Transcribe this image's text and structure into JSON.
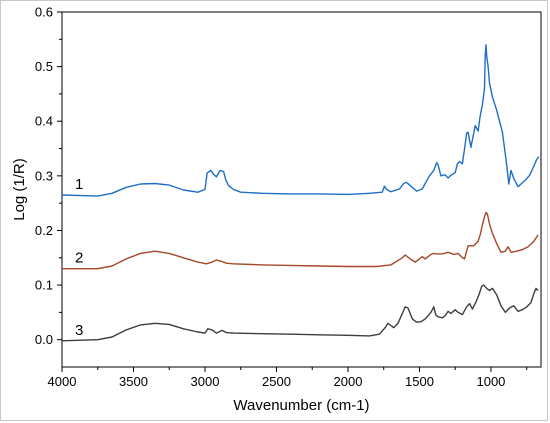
{
  "chart_data": {
    "type": "line",
    "xlabel": "Wavenumber (cm-1)",
    "ylabel": "Log (1/R)",
    "xlim": [
      4000,
      650
    ],
    "ylim": [
      -0.05,
      0.6
    ],
    "x_ticks": [
      "4000",
      "3500",
      "3000",
      "2500",
      "2000",
      "1500",
      "1000"
    ],
    "y_ticks": [
      "0.0",
      "0.1",
      "0.2",
      "0.3",
      "0.4",
      "0.5",
      "0.6"
    ],
    "grid": false,
    "series": [
      {
        "name": "1",
        "color": "#1f6ec4",
        "x": [
          4000,
          3750,
          3650,
          3550,
          3450,
          3350,
          3250,
          3150,
          3050,
          3000,
          2985,
          2960,
          2940,
          2920,
          2895,
          2870,
          2855,
          2835,
          2800,
          2750,
          2600,
          2400,
          2200,
          2000,
          1850,
          1760,
          1745,
          1730,
          1700,
          1640,
          1610,
          1590,
          1560,
          1520,
          1480,
          1460,
          1430,
          1400,
          1380,
          1370,
          1350,
          1320,
          1300,
          1280,
          1250,
          1235,
          1220,
          1200,
          1180,
          1170,
          1160,
          1140,
          1110,
          1090,
          1075,
          1060,
          1045,
          1040,
          1035,
          1030,
          1020,
          1010,
          990,
          960,
          920,
          890,
          875,
          860,
          840,
          810,
          790,
          760,
          730,
          700,
          680,
          665
        ],
        "y": [
          0.265,
          0.263,
          0.268,
          0.279,
          0.285,
          0.286,
          0.283,
          0.274,
          0.27,
          0.275,
          0.305,
          0.31,
          0.303,
          0.298,
          0.31,
          0.308,
          0.293,
          0.282,
          0.275,
          0.27,
          0.268,
          0.267,
          0.267,
          0.266,
          0.268,
          0.27,
          0.281,
          0.275,
          0.271,
          0.276,
          0.286,
          0.288,
          0.281,
          0.272,
          0.276,
          0.286,
          0.3,
          0.31,
          0.324,
          0.32,
          0.3,
          0.302,
          0.296,
          0.301,
          0.306,
          0.322,
          0.326,
          0.322,
          0.358,
          0.378,
          0.38,
          0.352,
          0.392,
          0.382,
          0.41,
          0.43,
          0.46,
          0.52,
          0.54,
          0.52,
          0.5,
          0.47,
          0.445,
          0.42,
          0.38,
          0.32,
          0.285,
          0.31,
          0.295,
          0.28,
          0.285,
          0.292,
          0.301,
          0.318,
          0.33,
          0.335
        ]
      },
      {
        "name": "2",
        "color": "#a5472a",
        "x": [
          4000,
          3750,
          3650,
          3550,
          3450,
          3350,
          3250,
          3150,
          3050,
          2990,
          2950,
          2920,
          2880,
          2850,
          2800,
          2600,
          2400,
          2200,
          2000,
          1800,
          1700,
          1620,
          1600,
          1560,
          1530,
          1500,
          1480,
          1460,
          1440,
          1420,
          1400,
          1380,
          1340,
          1300,
          1260,
          1230,
          1200,
          1185,
          1160,
          1120,
          1090,
          1075,
          1060,
          1045,
          1035,
          1025,
          1010,
          990,
          960,
          930,
          900,
          880,
          860,
          820,
          780,
          740,
          700,
          670
        ],
        "y": [
          0.13,
          0.13,
          0.135,
          0.148,
          0.158,
          0.162,
          0.158,
          0.15,
          0.142,
          0.139,
          0.142,
          0.146,
          0.143,
          0.14,
          0.139,
          0.137,
          0.136,
          0.135,
          0.134,
          0.134,
          0.137,
          0.15,
          0.155,
          0.147,
          0.142,
          0.148,
          0.152,
          0.148,
          0.152,
          0.156,
          0.158,
          0.157,
          0.157,
          0.16,
          0.156,
          0.158,
          0.15,
          0.148,
          0.172,
          0.172,
          0.18,
          0.192,
          0.21,
          0.225,
          0.233,
          0.23,
          0.212,
          0.195,
          0.176,
          0.16,
          0.162,
          0.17,
          0.16,
          0.162,
          0.165,
          0.17,
          0.18,
          0.192
        ]
      },
      {
        "name": "3",
        "color": "#3d3d3d",
        "x": [
          4000,
          3750,
          3650,
          3550,
          3450,
          3350,
          3250,
          3150,
          3050,
          3000,
          2980,
          2950,
          2920,
          2880,
          2850,
          2800,
          2600,
          2400,
          2200,
          2000,
          1850,
          1780,
          1740,
          1720,
          1700,
          1680,
          1650,
          1620,
          1600,
          1580,
          1550,
          1520,
          1490,
          1460,
          1420,
          1400,
          1385,
          1370,
          1340,
          1320,
          1300,
          1280,
          1250,
          1230,
          1200,
          1170,
          1150,
          1130,
          1100,
          1080,
          1065,
          1050,
          1030,
          1010,
          990,
          960,
          930,
          900,
          870,
          840,
          810,
          780,
          750,
          720,
          700,
          685,
          670
        ],
        "y": [
          -0.002,
          0.0,
          0.005,
          0.018,
          0.027,
          0.03,
          0.028,
          0.02,
          0.014,
          0.012,
          0.02,
          0.018,
          0.012,
          0.017,
          0.013,
          0.012,
          0.011,
          0.01,
          0.009,
          0.008,
          0.007,
          0.01,
          0.022,
          0.03,
          0.026,
          0.022,
          0.03,
          0.048,
          0.06,
          0.058,
          0.038,
          0.032,
          0.033,
          0.038,
          0.05,
          0.06,
          0.045,
          0.042,
          0.04,
          0.044,
          0.052,
          0.048,
          0.055,
          0.05,
          0.046,
          0.06,
          0.066,
          0.056,
          0.072,
          0.085,
          0.098,
          0.1,
          0.094,
          0.09,
          0.094,
          0.082,
          0.062,
          0.05,
          0.058,
          0.062,
          0.052,
          0.055,
          0.06,
          0.068,
          0.085,
          0.094,
          0.09
        ]
      }
    ]
  }
}
